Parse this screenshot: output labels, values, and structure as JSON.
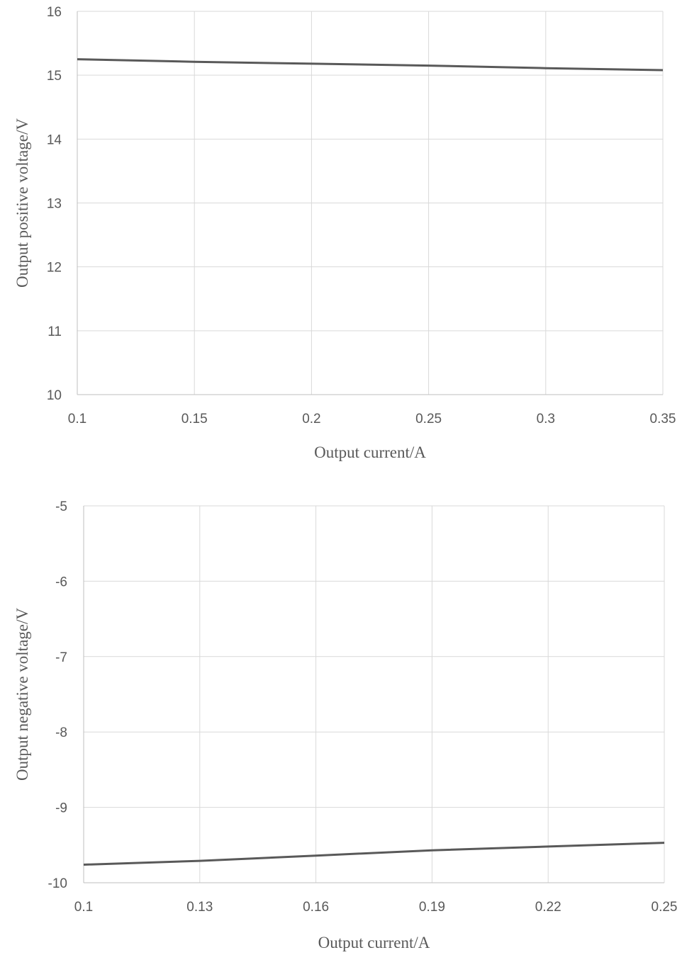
{
  "chart_data": [
    {
      "type": "line",
      "x": [
        0.1,
        0.15,
        0.2,
        0.25,
        0.3,
        0.35
      ],
      "series": [
        {
          "values": [
            15.25,
            15.21,
            15.18,
            15.15,
            15.11,
            15.08
          ]
        }
      ],
      "xticks": [
        0.1,
        0.15,
        0.2,
        0.25,
        0.3,
        0.35
      ],
      "xtick_labels": [
        "0.1",
        "0.15",
        "0.2",
        "0.25",
        "0.3",
        "0.35"
      ],
      "yticks": [
        10,
        11,
        12,
        13,
        14,
        15,
        16
      ],
      "ytick_labels": [
        "10",
        "11",
        "12",
        "13",
        "14",
        "15",
        "16"
      ],
      "xlim": [
        0.1,
        0.35
      ],
      "ylim": [
        10,
        16
      ],
      "xlabel": "Output current/A",
      "ylabel": "Output positive voltage/V",
      "grid": true,
      "line_color": "#595959"
    },
    {
      "type": "line",
      "x": [
        0.1,
        0.13,
        0.16,
        0.19,
        0.22,
        0.25
      ],
      "series": [
        {
          "values": [
            -9.76,
            -9.71,
            -9.64,
            -9.57,
            -9.52,
            -9.47
          ]
        }
      ],
      "xticks": [
        0.1,
        0.13,
        0.16,
        0.19,
        0.22,
        0.25
      ],
      "xtick_labels": [
        "0.1",
        "0.13",
        "0.16",
        "0.19",
        "0.22",
        "0.25"
      ],
      "yticks": [
        -10,
        -9,
        -8,
        -7,
        -6,
        -5
      ],
      "ytick_labels": [
        "-10",
        "-9",
        "-8",
        "-7",
        "-6",
        "-5"
      ],
      "xlim": [
        0.1,
        0.25
      ],
      "ylim": [
        -10,
        -5
      ],
      "xlabel": "Output current/A",
      "ylabel": "Output negative voltage/V",
      "grid": true,
      "line_color": "#595959"
    }
  ]
}
